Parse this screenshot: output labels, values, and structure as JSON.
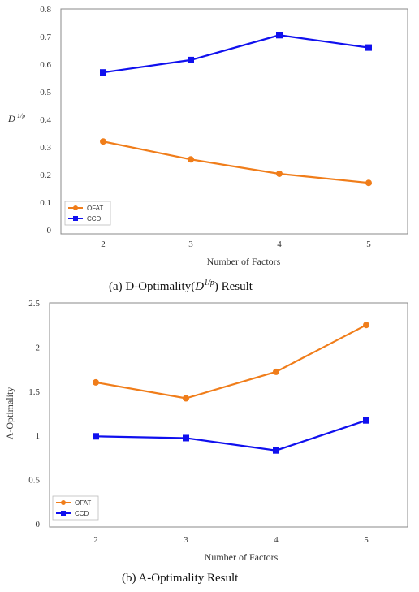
{
  "chart_data": [
    {
      "type": "line",
      "categories": [
        "2",
        "3",
        "4",
        "5"
      ],
      "series": [
        {
          "name": "OFAT",
          "values": [
            0.32,
            0.255,
            0.203,
            0.17
          ],
          "color": "#F07D1A",
          "marker": "circle"
        },
        {
          "name": "CCD",
          "values": [
            0.57,
            0.615,
            0.705,
            0.66
          ],
          "color": "#1010EE",
          "marker": "square"
        }
      ],
      "xlabel": "Number of Factors",
      "ylabel_base": "D",
      "ylabel_sup": "1/p",
      "ylim": [
        0,
        0.8
      ],
      "yticks": [
        "0",
        "0.1",
        "0.2",
        "0.3",
        "0.4",
        "0.5",
        "0.6",
        "0.7",
        "0.8"
      ],
      "legend": "bottom-left",
      "grid": false
    },
    {
      "type": "line",
      "categories": [
        "2",
        "3",
        "4",
        "5"
      ],
      "series": [
        {
          "name": "OFAT",
          "values": [
            1.6,
            1.42,
            1.72,
            2.25
          ],
          "color": "#F07D1A",
          "marker": "circle"
        },
        {
          "name": "CCD",
          "values": [
            0.99,
            0.97,
            0.83,
            1.17
          ],
          "color": "#1010EE",
          "marker": "square"
        }
      ],
      "xlabel": "Number of Factors",
      "ylabel": "A-Optimality",
      "ylim": [
        0,
        2.5
      ],
      "yticks": [
        "0",
        "0.5",
        "1",
        "1.5",
        "2",
        "2.5"
      ],
      "legend": "bottom-left",
      "grid": false
    }
  ],
  "captions": {
    "a_prefix": "(a)  D-Optimality(",
    "a_math": "D",
    "a_sup": "1/p",
    "a_suffix": ")  Result",
    "b": "(b)  A-Optimality  Result"
  }
}
